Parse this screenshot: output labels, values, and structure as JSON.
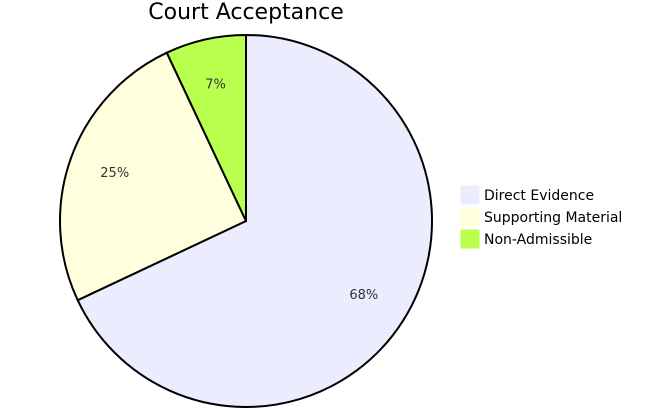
{
  "chart_data": {
    "type": "pie",
    "title": "Court Acceptance",
    "categories": [
      "Direct Evidence",
      "Supporting Material",
      "Non-Admissible"
    ],
    "values": [
      68,
      25,
      7
    ],
    "value_labels": [
      "68%",
      "25%",
      "7%"
    ],
    "colors": [
      "#ececff",
      "#ffffde",
      "#b9ff4d"
    ]
  }
}
